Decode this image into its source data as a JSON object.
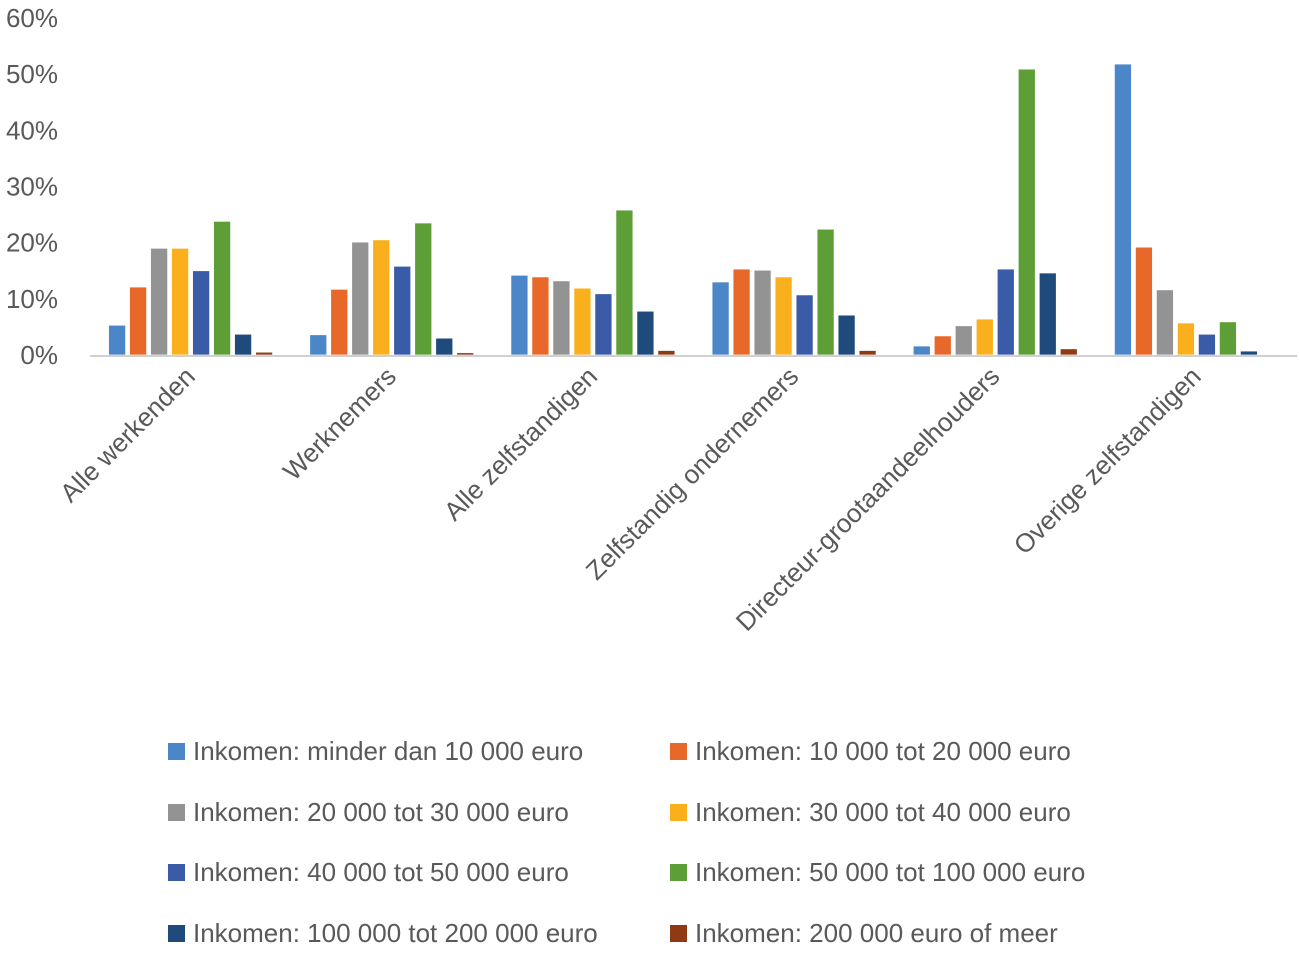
{
  "chart_data": {
    "type": "bar",
    "title": "",
    "xlabel": "",
    "ylabel": "",
    "ylim": [
      0,
      60
    ],
    "y_tick_labels": [
      "0%",
      "10%",
      "20%",
      "30%",
      "40%",
      "50%",
      "60%"
    ],
    "y_ticks": [
      0,
      10,
      20,
      30,
      40,
      50,
      60
    ],
    "grid": false,
    "legend_position": "bottom",
    "categories": [
      "Alle werkenden",
      "Werknemers",
      "Alle zelfstandigen",
      "Zelfstandig ondernemers",
      "Directeur-grootaandeelhouders",
      "Overige zelfstandigen"
    ],
    "series": [
      {
        "name": "Inkomen: minder dan 10 000 euro",
        "color": "#4a86c8",
        "values": [
          5.3,
          3.6,
          14.2,
          13.0,
          1.6,
          51.8
        ]
      },
      {
        "name": "Inkomen: 10 000 tot 20 000 euro",
        "color": "#e8682a",
        "values": [
          12.1,
          11.7,
          13.9,
          15.3,
          3.4,
          19.2
        ]
      },
      {
        "name": "Inkomen: 20 000 tot 30 000 euro",
        "color": "#939393",
        "values": [
          19.0,
          20.1,
          13.2,
          15.1,
          5.2,
          11.6
        ]
      },
      {
        "name": "Inkomen: 30 000 tot 40 000 euro",
        "color": "#fab01c",
        "values": [
          19.0,
          20.5,
          11.9,
          13.9,
          6.4,
          5.7
        ]
      },
      {
        "name": "Inkomen: 40 000 tot 50 000 euro",
        "color": "#3a5ca8",
        "values": [
          15.0,
          15.8,
          10.9,
          10.7,
          15.3,
          3.7
        ]
      },
      {
        "name": "Inkomen: 50 000 tot 100 000 euro",
        "color": "#5e9e37",
        "values": [
          23.8,
          23.5,
          25.8,
          22.4,
          50.9,
          5.9
        ]
      },
      {
        "name": "Inkomen: 100 000 tot 200 000 euro",
        "color": "#1f4a7c",
        "values": [
          3.7,
          3.0,
          7.8,
          7.1,
          14.6,
          0.7
        ]
      },
      {
        "name": "Inkomen: 200 000 euro of meer",
        "color": "#8f3a14",
        "values": [
          0.5,
          0.4,
          0.8,
          0.8,
          1.1,
          0.1
        ]
      }
    ]
  }
}
